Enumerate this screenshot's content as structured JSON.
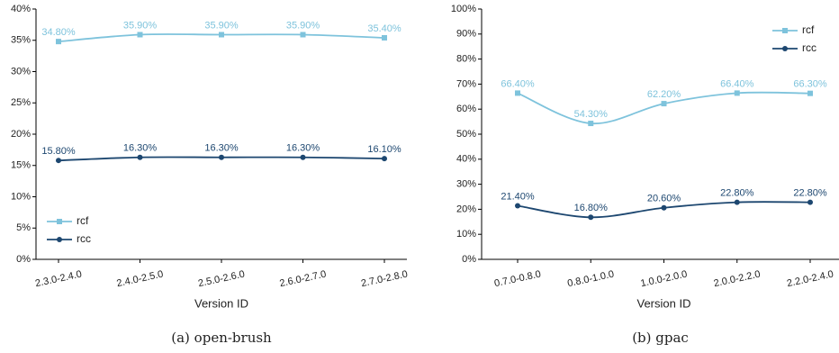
{
  "chart_data": [
    {
      "type": "line",
      "caption": "(a) open-brush",
      "xlabel": "Version ID",
      "categories": [
        "2.3.0-2.4.0",
        "2.4.0-2.5.0",
        "2.5.0-2.6.0",
        "2.6.0-2.7.0",
        "2.7.0-2.8.0"
      ],
      "series": [
        {
          "name": "rcf",
          "color": "#7ec3dc",
          "marker": "square",
          "values": [
            34.8,
            35.9,
            35.9,
            35.9,
            35.4
          ],
          "value_labels": [
            "34.80%",
            "35.90%",
            "35.90%",
            "35.90%",
            "35.40%"
          ]
        },
        {
          "name": "rcc",
          "color": "#1d4770",
          "marker": "circle",
          "values": [
            15.8,
            16.3,
            16.3,
            16.3,
            16.1
          ],
          "value_labels": [
            "15.80%",
            "16.30%",
            "16.30%",
            "16.30%",
            "16.10%"
          ]
        }
      ],
      "ylim": [
        0,
        40
      ],
      "yticks": [
        {
          "value": 0,
          "label": "0%"
        },
        {
          "value": 5,
          "label": "5%"
        },
        {
          "value": 10,
          "label": "10%"
        },
        {
          "value": 15,
          "label": "15%"
        },
        {
          "value": 20,
          "label": "20%"
        },
        {
          "value": 25,
          "label": "25%"
        },
        {
          "value": 30,
          "label": "30%"
        },
        {
          "value": 35,
          "label": "35%"
        },
        {
          "value": 40,
          "label": "40%"
        }
      ],
      "legend": "lower left"
    },
    {
      "type": "line",
      "caption": "(b) gpac",
      "xlabel": "Version ID",
      "categories": [
        "0.7.0-0.8.0",
        "0.8.0-1.0.0",
        "1.0.0-2.0.0",
        "2.0.0-2.2.0",
        "2.2.0-2.4.0"
      ],
      "series": [
        {
          "name": "rcf",
          "color": "#7ec3dc",
          "marker": "square",
          "values": [
            66.4,
            54.3,
            62.2,
            66.4,
            66.3
          ],
          "value_labels": [
            "66.40%",
            "54.30%",
            "62.20%",
            "66.40%",
            "66.30%"
          ]
        },
        {
          "name": "rcc",
          "color": "#1d4770",
          "marker": "circle",
          "values": [
            21.4,
            16.8,
            20.6,
            22.8,
            22.8
          ],
          "value_labels": [
            "21.40%",
            "16.80%",
            "20.60%",
            "22.80%",
            "22.80%"
          ]
        }
      ],
      "ylim": [
        0,
        100
      ],
      "yticks": [
        {
          "value": 0,
          "label": "0%"
        },
        {
          "value": 10,
          "label": "10%"
        },
        {
          "value": 20,
          "label": "20%"
        },
        {
          "value": 30,
          "label": "30%"
        },
        {
          "value": 40,
          "label": "40%"
        },
        {
          "value": 50,
          "label": "50%"
        },
        {
          "value": 60,
          "label": "60%"
        },
        {
          "value": 70,
          "label": "70%"
        },
        {
          "value": 80,
          "label": "80%"
        },
        {
          "value": 90,
          "label": "90%"
        },
        {
          "value": 100,
          "label": "100%"
        }
      ],
      "legend": "upper right"
    }
  ]
}
